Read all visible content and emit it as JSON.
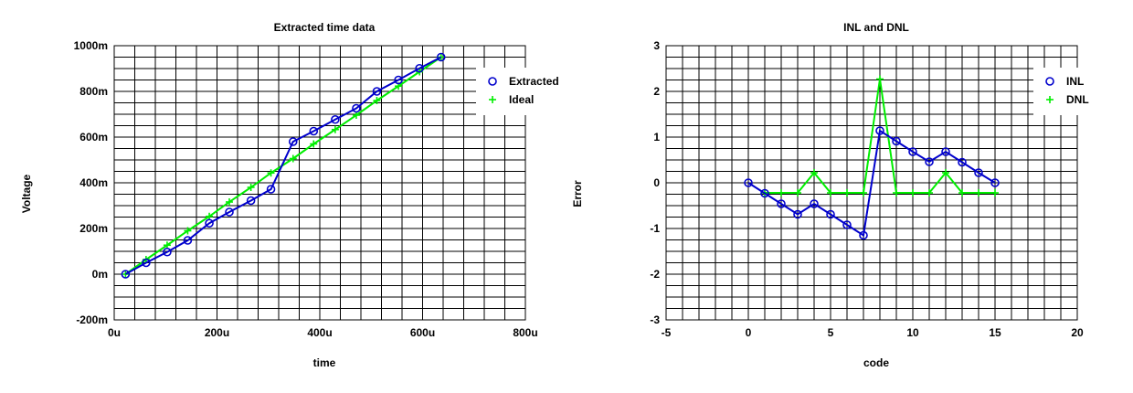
{
  "colors": {
    "extracted": "#0000cc",
    "ideal": "#00ee00",
    "grid": "#000000",
    "background": "#ffffff"
  },
  "chart_data": [
    {
      "type": "line",
      "title": "Extracted time data",
      "xlabel": "time",
      "ylabel": "Voltage",
      "xlim": [
        0,
        800
      ],
      "ylim": [
        -200,
        1000
      ],
      "x_unit": "u",
      "y_unit": "m",
      "xticks": [
        0,
        200,
        400,
        600,
        800
      ],
      "xtick_labels": [
        "0u",
        "200u",
        "400u",
        "600u",
        "800u"
      ],
      "yticks": [
        -200,
        0,
        200,
        400,
        600,
        800,
        1000
      ],
      "ytick_labels": [
        "-200m",
        "0m",
        "200m",
        "400m",
        "600m",
        "800m",
        "1000m"
      ],
      "grid": true,
      "legend_position": "top-right",
      "series": [
        {
          "name": "Extracted",
          "marker": "circle",
          "color": "#0000cc",
          "x": [
            22,
            62,
            103,
            143,
            185,
            224,
            266,
            305,
            348,
            388,
            430,
            471,
            511,
            553,
            594,
            636
          ],
          "y": [
            0,
            50,
            97,
            148,
            223,
            272,
            322,
            372,
            580,
            626,
            677,
            726,
            800,
            850,
            901,
            950
          ]
        },
        {
          "name": "Ideal",
          "marker": "plus",
          "color": "#00ee00",
          "x": [
            22,
            62,
            103,
            143,
            185,
            224,
            266,
            305,
            348,
            388,
            430,
            471,
            511,
            553,
            594,
            636
          ],
          "y": [
            0,
            64,
            127,
            190,
            253,
            316,
            380,
            443,
            506,
            570,
            633,
            696,
            760,
            823,
            886,
            950
          ]
        }
      ]
    },
    {
      "type": "line",
      "title": "INL and DNL",
      "xlabel": "code",
      "ylabel": "Error",
      "xlim": [
        -5,
        20
      ],
      "ylim": [
        -3,
        3
      ],
      "xticks": [
        -5,
        0,
        5,
        10,
        15,
        20
      ],
      "xtick_labels": [
        "-5",
        "0",
        "5",
        "10",
        "15",
        "20"
      ],
      "yticks": [
        -3,
        -2,
        -1,
        0,
        1,
        2,
        3
      ],
      "ytick_labels": [
        "-3",
        "-2",
        "-1",
        "0",
        "1",
        "2",
        "3"
      ],
      "grid": true,
      "legend_position": "top-right",
      "series": [
        {
          "name": "INL",
          "marker": "circle",
          "color": "#0000cc",
          "x": [
            0,
            1,
            2,
            3,
            4,
            5,
            6,
            7,
            8,
            9,
            10,
            11,
            12,
            13,
            14,
            15
          ],
          "y": [
            0,
            -0.23,
            -0.46,
            -0.69,
            -0.46,
            -0.69,
            -0.92,
            -1.15,
            1.14,
            0.91,
            0.68,
            0.46,
            0.68,
            0.45,
            0.22,
            0
          ]
        },
        {
          "name": "DNL",
          "marker": "plus",
          "color": "#00ee00",
          "x": [
            1,
            2,
            3,
            4,
            5,
            6,
            7,
            8,
            9,
            10,
            11,
            12,
            13,
            14,
            15
          ],
          "y": [
            -0.22,
            -0.22,
            -0.22,
            0.22,
            -0.22,
            -0.22,
            -0.22,
            2.27,
            -0.22,
            -0.22,
            -0.22,
            0.22,
            -0.22,
            -0.22,
            -0.22
          ]
        }
      ]
    }
  ]
}
